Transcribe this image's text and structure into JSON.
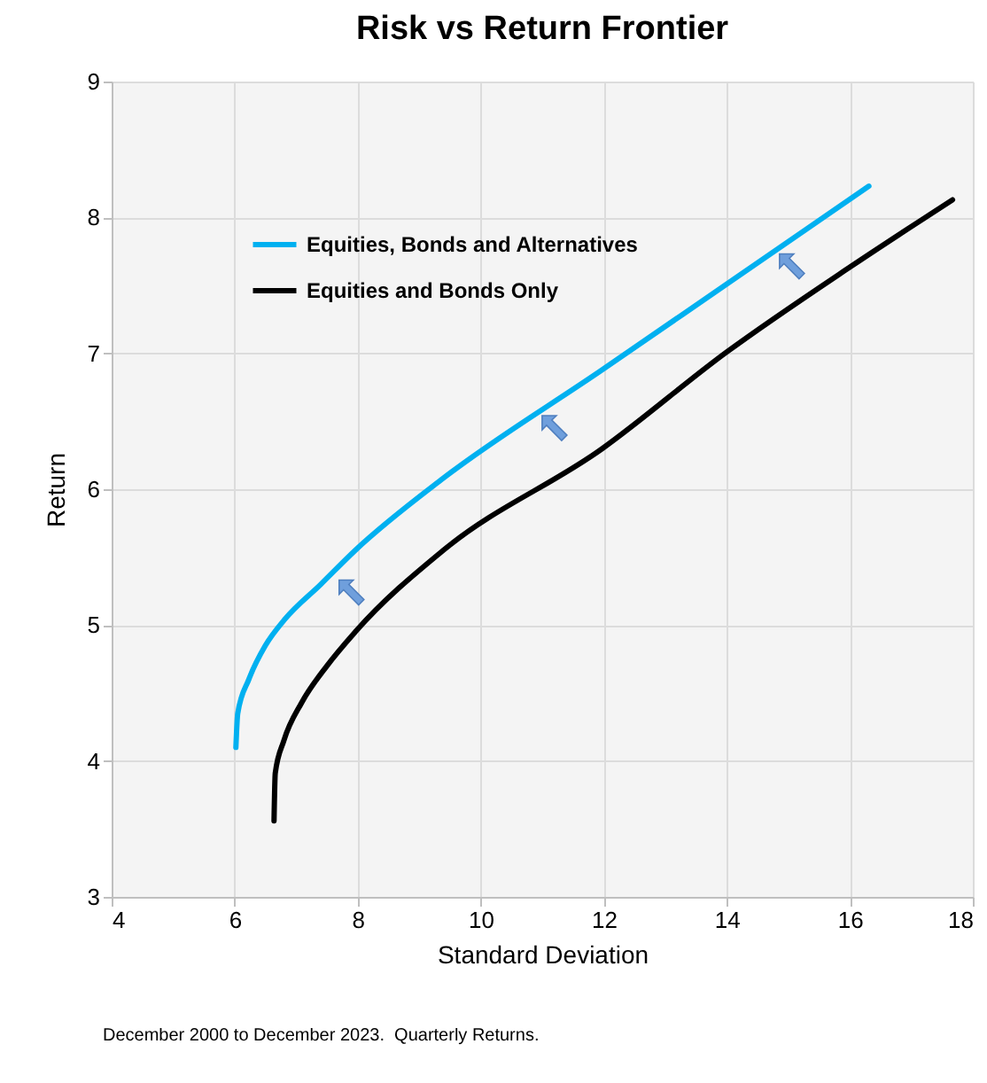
{
  "chart_data": {
    "type": "line",
    "title": "Risk vs Return Frontier",
    "xlabel": "Standard Deviation",
    "ylabel": "Return",
    "xlim": [
      4,
      18
    ],
    "xticks": [
      4,
      6,
      8,
      10,
      12,
      14,
      16,
      18
    ],
    "ylim": [
      3,
      9
    ],
    "yticks": [
      3,
      4,
      5,
      6,
      7,
      8,
      9
    ],
    "grid": true,
    "legend": "top left",
    "marker": "none",
    "line_style": "solid",
    "series": [
      {
        "name": "Equities, Bonds and Alternatives",
        "color": "#00b0f0",
        "x": [
          6.02,
          6.05,
          6.23,
          6.5,
          6.81,
          7.4,
          7.96,
          9.39,
          11.98,
          14.0,
          16.31
        ],
        "values": [
          4.1,
          4.35,
          4.6,
          4.85,
          5.04,
          5.3,
          5.55,
          6.08,
          6.88,
          7.51,
          8.23
        ]
      },
      {
        "name": "Equities and Bonds Only",
        "color": "#000000",
        "x": [
          6.64,
          6.66,
          6.8,
          7.09,
          7.5,
          7.96,
          9.39,
          11.98,
          14.0,
          16.02,
          17.67
        ],
        "values": [
          3.56,
          3.91,
          4.15,
          4.43,
          4.7,
          4.95,
          5.55,
          6.3,
          7.01,
          7.64,
          8.13
        ]
      }
    ],
    "annotations": [
      "December 2000 to December 2023.  Quarterly Returns."
    ]
  }
}
